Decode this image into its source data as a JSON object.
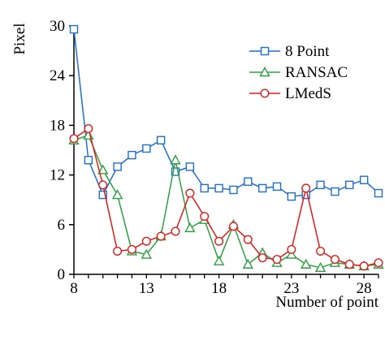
{
  "chart_data": {
    "type": "line",
    "title": "",
    "xlabel": "Number of point",
    "ylabel": "Pixel",
    "xlim": [
      8,
      29
    ],
    "ylim": [
      0,
      30
    ],
    "xticks": [
      8,
      13,
      18,
      23,
      28
    ],
    "yticks": [
      0,
      6,
      12,
      18,
      24,
      30
    ],
    "grid": false,
    "legend_position": "top-right",
    "x": [
      8,
      9,
      10,
      11,
      12,
      13,
      14,
      15,
      16,
      17,
      18,
      19,
      20,
      21,
      22,
      23,
      24,
      25,
      26,
      27,
      28,
      29
    ],
    "series": [
      {
        "name": "8 Point",
        "color": "#1f6fd0",
        "marker": "square",
        "values": [
          29.6,
          13.8,
          9.6,
          13.0,
          14.4,
          15.2,
          16.2,
          12.4,
          13.0,
          10.4,
          10.4,
          10.2,
          11.2,
          10.4,
          10.6,
          9.4,
          9.6,
          10.8,
          10.0,
          10.8,
          11.4,
          9.8
        ]
      },
      {
        "name": "RANSAC",
        "color": "#2ea043",
        "marker": "triangle",
        "values": [
          16.2,
          16.8,
          12.6,
          9.6,
          2.8,
          2.4,
          4.6,
          13.8,
          5.6,
          6.6,
          1.6,
          6.0,
          1.2,
          2.6,
          1.4,
          2.4,
          1.2,
          0.8,
          1.4,
          1.2,
          1.0,
          1.2
        ]
      },
      {
        "name": "LMedS",
        "color": "#e01b1b",
        "marker": "circle",
        "values": [
          16.4,
          17.6,
          10.8,
          2.8,
          3.0,
          4.0,
          4.6,
          5.2,
          9.8,
          7.0,
          4.0,
          5.8,
          4.2,
          2.0,
          1.8,
          3.0,
          10.4,
          2.8,
          1.8,
          1.2,
          1.0,
          1.4
        ]
      }
    ]
  }
}
